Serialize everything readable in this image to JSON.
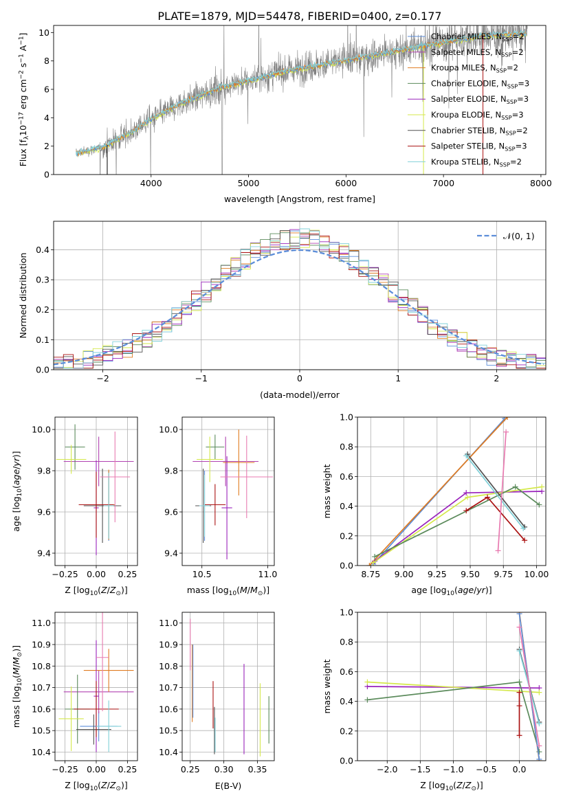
{
  "figure_title": "PLATE=1879, MJD=54478, FIBERID=0400, z=0.177",
  "colors": {
    "chabrier_miles": "#5b8dd9",
    "salpeter_miles": "#b040b0",
    "kroupa_miles": "#e07b20",
    "chabrier_elodie": "#5a8a5a",
    "salpeter_elodie": "#9922bb",
    "kroupa_elodie": "#d4e84a",
    "chabrier_stelib": "#505050",
    "salpeter_stelib": "#aa1111",
    "kroupa_stelib": "#80d0d8",
    "pink": "#e87ab0",
    "data": "#808080",
    "normal": "#5b8dd9"
  },
  "chart_data": [
    {
      "id": "spectrum",
      "type": "line",
      "xlabel": "wavelength [Angstrom, rest frame]",
      "ylabel": "Flux [f",
      "ylabel_parts": [
        "Flux [f",
        "λ",
        "10",
        "−17",
        " erg cm",
        "−2",
        " s",
        "−1",
        " A",
        "−1",
        "]"
      ],
      "xlim": [
        3000,
        8050
      ],
      "ylim": [
        0,
        10.5
      ],
      "xticks": [
        "4000",
        "5000",
        "6000",
        "7000",
        "8000"
      ],
      "yticks": [
        "0",
        "2",
        "4",
        "6",
        "8",
        "10"
      ],
      "legend": [
        {
          "label": "Chabrier MILES, N",
          "sub": "SSP",
          "tail": "=2",
          "color": "chabrier_miles"
        },
        {
          "label": "Salpeter MILES, N",
          "sub": "SSP",
          "tail": "=2",
          "color": "salpeter_miles"
        },
        {
          "label": "Kroupa MILES, N",
          "sub": "SSP",
          "tail": "=2",
          "color": "kroupa_miles"
        },
        {
          "label": "Chabrier ELODIE, N",
          "sub": "SSP",
          "tail": "=3",
          "color": "chabrier_elodie"
        },
        {
          "label": "Salpeter ELODIE, N",
          "sub": "SSP",
          "tail": "=3",
          "color": "salpeter_elodie"
        },
        {
          "label": "Kroupa ELODIE, N",
          "sub": "SSP",
          "tail": "=3",
          "color": "kroupa_elodie"
        },
        {
          "label": "Chabrier STELIB, N",
          "sub": "SSP",
          "tail": "=2",
          "color": "chabrier_stelib"
        },
        {
          "label": "Salpeter STELIB, N",
          "sub": "SSP",
          "tail": "=3",
          "color": "salpeter_stelib"
        },
        {
          "label": "Kroupa STELIB, N",
          "sub": "SSP",
          "tail": "=2",
          "color": "kroupa_stelib"
        }
      ],
      "continuum": [
        [
          3230,
          1.5
        ],
        [
          3500,
          1.9
        ],
        [
          3800,
          3.0
        ],
        [
          4000,
          3.9
        ],
        [
          4300,
          5.0
        ],
        [
          4700,
          6.1
        ],
        [
          5000,
          6.6
        ],
        [
          5400,
          7.3
        ],
        [
          5800,
          7.8
        ],
        [
          6200,
          8.3
        ],
        [
          6600,
          8.8
        ],
        [
          7000,
          9.3
        ],
        [
          7400,
          9.8
        ],
        [
          7800,
          9.9
        ]
      ],
      "model_range": [
        3230,
        7850
      ]
    },
    {
      "id": "residuals",
      "type": "bar",
      "xlabel": "(data-model)/error",
      "ylabel": "Normed distribution",
      "xlim": [
        -2.5,
        2.5
      ],
      "ylim": [
        0,
        0.495
      ],
      "xticks": [
        "−2",
        "−1",
        "0",
        "1",
        "2"
      ],
      "yticks": [
        "0.0",
        "0.1",
        "0.2",
        "0.3",
        "0.4"
      ],
      "legend": [
        {
          "label": "𝒩(0, 1)",
          "color": "normal"
        }
      ],
      "bin_width": 0.1
    },
    {
      "id": "age_vs_Z",
      "type": "scatter",
      "xlabel": "Z [log",
      "ylabel": "age  [log",
      "xlim": [
        -0.33,
        0.33
      ],
      "ylim": [
        9.34,
        10.06
      ],
      "xticks": [
        "−0.25",
        "0.00",
        "0.25"
      ],
      "yticks": [
        "9.4",
        "9.6",
        "9.8",
        "10.0"
      ],
      "points": [
        {
          "x": 0.1,
          "y": 9.63,
          "xerr": 0.08,
          "yerr": 0.17,
          "color": "chabrier_miles"
        },
        {
          "x": 0.02,
          "y": 9.845,
          "xerr": 0.28,
          "yerr": 0.12,
          "color": "salpeter_miles"
        },
        {
          "x": 0.1,
          "y": 9.635,
          "xerr": 0.05,
          "yerr": 0.17,
          "color": "kroupa_miles"
        },
        {
          "x": -0.17,
          "y": 9.915,
          "xerr": 0.08,
          "yerr": 0.11,
          "color": "chabrier_elodie"
        },
        {
          "x": 0.0,
          "y": 9.62,
          "xerr": 0.02,
          "yerr": 0.23,
          "color": "salpeter_elodie"
        },
        {
          "x": -0.2,
          "y": 9.855,
          "xerr": 0.12,
          "yerr": 0.07,
          "color": "kroupa_elodie"
        },
        {
          "x": 0.05,
          "y": 9.63,
          "xerr": 0.15,
          "yerr": 0.18,
          "color": "chabrier_stelib"
        },
        {
          "x": 0.0,
          "y": 9.635,
          "xerr": 0.14,
          "yerr": 0.16,
          "color": "salpeter_stelib"
        },
        {
          "x": 0.1,
          "y": 9.63,
          "xerr": 0.04,
          "yerr": 0.16,
          "color": "kroupa_stelib"
        },
        {
          "x": 0.15,
          "y": 9.77,
          "xerr": 0.12,
          "yerr": 0.22,
          "color": "pink"
        }
      ]
    },
    {
      "id": "age_vs_mass",
      "type": "scatter",
      "xlabel": "mass [log",
      "xlim": [
        10.35,
        11.05
      ],
      "ylim": [
        9.34,
        10.06
      ],
      "xticks": [
        "10.5",
        "11.0"
      ],
      "yticks": [
        "9.4",
        "9.6",
        "9.8",
        "10.0"
      ],
      "points": [
        {
          "x": 10.52,
          "y": 9.63,
          "xerr": 0.05,
          "yerr": 0.17,
          "color": "chabrier_miles"
        },
        {
          "x": 10.68,
          "y": 9.845,
          "xerr": 0.25,
          "yerr": 0.12,
          "color": "salpeter_miles"
        },
        {
          "x": 10.78,
          "y": 9.84,
          "xerr": 0.12,
          "yerr": 0.16,
          "color": "kroupa_miles"
        },
        {
          "x": 10.6,
          "y": 9.915,
          "xerr": 0.07,
          "yerr": 0.06,
          "color": "chabrier_elodie"
        },
        {
          "x": 10.69,
          "y": 9.62,
          "xerr": 0.04,
          "yerr": 0.25,
          "color": "salpeter_elodie"
        },
        {
          "x": 10.56,
          "y": 9.855,
          "xerr": 0.1,
          "yerr": 0.11,
          "color": "kroupa_elodie"
        },
        {
          "x": 10.51,
          "y": 9.63,
          "xerr": 0.06,
          "yerr": 0.18,
          "color": "chabrier_stelib"
        },
        {
          "x": 10.6,
          "y": 9.635,
          "xerr": 0.08,
          "yerr": 0.1,
          "color": "salpeter_stelib"
        },
        {
          "x": 10.52,
          "y": 9.63,
          "xerr": 0.04,
          "yerr": 0.15,
          "color": "kroupa_stelib"
        },
        {
          "x": 10.84,
          "y": 9.77,
          "xerr": 0.2,
          "yerr": 0.2,
          "color": "pink"
        }
      ]
    },
    {
      "id": "weight_vs_age",
      "type": "line",
      "xlabel": "age  [log",
      "ylabel": "mass weight",
      "xlim": [
        8.65,
        10.07
      ],
      "ylim": [
        0,
        1.0
      ],
      "xticks": [
        "8.75",
        "9.00",
        "9.25",
        "9.50",
        "9.75",
        "10.00"
      ],
      "yticks": [
        "0.0",
        "0.2",
        "0.4",
        "0.6",
        "0.8",
        "1.0"
      ],
      "series": [
        {
          "color": "chabrier_miles",
          "x": [
            8.77,
            9.76
          ],
          "y": [
            0.01,
            0.99
          ]
        },
        {
          "color": "kroupa_miles",
          "x": [
            8.74,
            9.78
          ],
          "y": [
            0.0,
            1.0
          ]
        },
        {
          "color": "salpeter_elodie",
          "x": [
            8.78,
            9.47,
            10.04
          ],
          "y": [
            0.03,
            0.49,
            0.5
          ]
        },
        {
          "color": "kroupa_elodie",
          "x": [
            8.77,
            9.48,
            10.04
          ],
          "y": [
            0.02,
            0.46,
            0.53
          ]
        },
        {
          "color": "chabrier_elodie",
          "x": [
            8.78,
            9.84,
            10.02
          ],
          "y": [
            0.06,
            0.53,
            0.41
          ]
        },
        {
          "color": "salpeter_stelib",
          "x": [
            9.47,
            9.63,
            9.91
          ],
          "y": [
            0.37,
            0.46,
            0.17
          ]
        },
        {
          "color": "chabrier_stelib",
          "x": [
            9.48,
            9.91
          ],
          "y": [
            0.75,
            0.26
          ]
        },
        {
          "color": "kroupa_stelib",
          "x": [
            9.47,
            9.9
          ],
          "y": [
            0.74,
            0.25
          ]
        },
        {
          "color": "pink",
          "x": [
            9.71,
            9.77
          ],
          "y": [
            0.1,
            0.9
          ]
        }
      ]
    },
    {
      "id": "mass_vs_Z",
      "type": "scatter",
      "xlabel": "Z [log",
      "ylabel": "mass [log",
      "xlim": [
        -0.33,
        0.33
      ],
      "ylim": [
        10.36,
        11.05
      ],
      "xticks": [
        "−0.25",
        "0.00",
        "0.25"
      ],
      "yticks": [
        "10.4",
        "10.5",
        "10.6",
        "10.7",
        "10.8",
        "10.9",
        "11.0"
      ],
      "points": [
        {
          "x": 0.02,
          "y": 10.52,
          "xerr": 0.15,
          "yerr": 0.07,
          "color": "chabrier_miles"
        },
        {
          "x": 0.02,
          "y": 10.68,
          "xerr": 0.28,
          "yerr": 0.1,
          "color": "salpeter_miles"
        },
        {
          "x": 0.1,
          "y": 10.78,
          "xerr": 0.2,
          "yerr": 0.1,
          "color": "kroupa_miles"
        },
        {
          "x": -0.15,
          "y": 10.6,
          "xerr": 0.1,
          "yerr": 0.16,
          "color": "chabrier_elodie"
        },
        {
          "x": 0.0,
          "y": 10.66,
          "xerr": 0.02,
          "yerr": 0.26,
          "color": "salpeter_elodie"
        },
        {
          "x": -0.2,
          "y": 10.555,
          "xerr": 0.1,
          "yerr": 0.15,
          "color": "kroupa_elodie"
        },
        {
          "x": -0.02,
          "y": 10.505,
          "xerr": 0.14,
          "yerr": 0.07,
          "color": "chabrier_stelib"
        },
        {
          "x": 0.0,
          "y": 10.6,
          "xerr": 0.18,
          "yerr": 0.13,
          "color": "salpeter_stelib"
        },
        {
          "x": 0.1,
          "y": 10.52,
          "xerr": 0.1,
          "yerr": 0.12,
          "color": "kroupa_stelib"
        },
        {
          "x": 0.05,
          "y": 10.84,
          "xerr": 0.05,
          "yerr": 0.25,
          "color": "pink"
        }
      ]
    },
    {
      "id": "mass_vs_ebv",
      "type": "scatter",
      "xlabel": "E(B-V)",
      "xlim": [
        0.238,
        0.375
      ],
      "ylim": [
        10.36,
        11.05
      ],
      "xticks": [
        "0.25",
        "0.30",
        "0.35"
      ],
      "yticks": [
        "10.4",
        "10.5",
        "10.6",
        "10.7",
        "10.8",
        "10.9",
        "11.0"
      ],
      "points": [
        {
          "x": 0.253,
          "y": 10.72,
          "yerr": 0.18,
          "color": "kroupa_miles"
        },
        {
          "x": 0.25,
          "y": 10.9,
          "yerr": 0.12,
          "color": "pink"
        },
        {
          "x": 0.254,
          "y": 10.73,
          "yerr": 0.17,
          "color": "chabrier_miles"
        },
        {
          "x": 0.284,
          "y": 10.62,
          "yerr": 0.11,
          "color": "salpeter_stelib"
        },
        {
          "x": 0.286,
          "y": 10.5,
          "yerr": 0.11,
          "color": "chabrier_stelib"
        },
        {
          "x": 0.287,
          "y": 10.48,
          "yerr": 0.08,
          "color": "kroupa_stelib"
        },
        {
          "x": 0.33,
          "y": 10.6,
          "yerr": 0.21,
          "color": "salpeter_elodie"
        },
        {
          "x": 0.354,
          "y": 10.55,
          "yerr": 0.17,
          "color": "kroupa_elodie"
        },
        {
          "x": 0.367,
          "y": 10.55,
          "yerr": 0.11,
          "color": "chabrier_elodie"
        }
      ]
    },
    {
      "id": "weight_vs_Z",
      "type": "line",
      "xlabel": "Z [log",
      "ylabel": "mass weight",
      "xlim": [
        -2.45,
        0.4
      ],
      "ylim": [
        0,
        1.0
      ],
      "xticks": [
        "−2.0",
        "−1.5",
        "−1.0",
        "−0.5",
        "0.0"
      ],
      "yticks": [
        "0.0",
        "0.2",
        "0.4",
        "0.6",
        "0.8",
        "1.0"
      ],
      "series": [
        {
          "color": "salpeter_elodie",
          "x": [
            -2.3,
            0.3
          ],
          "y": [
            0.5,
            0.49
          ]
        },
        {
          "color": "kroupa_elodie",
          "x": [
            -2.3,
            0.3
          ],
          "y": [
            0.53,
            0.46
          ]
        },
        {
          "color": "chabrier_elodie",
          "x": [
            -2.3,
            0.0,
            0.3
          ],
          "y": [
            0.41,
            0.53,
            0.06
          ]
        },
        {
          "color": "kroupa_miles",
          "x": [
            0.0,
            0.3
          ],
          "y": [
            1.0,
            0.0
          ]
        },
        {
          "color": "chabrier_miles",
          "x": [
            0.0,
            0.3
          ],
          "y": [
            0.99,
            0.01
          ]
        },
        {
          "color": "salpeter_stelib",
          "x": [
            0.0,
            0.0,
            0.0
          ],
          "y": [
            0.17,
            0.37,
            0.46
          ]
        },
        {
          "color": "chabrier_stelib",
          "x": [
            0.0,
            0.3
          ],
          "y": [
            0.75,
            0.26
          ]
        },
        {
          "color": "kroupa_stelib",
          "x": [
            0.0,
            0.3
          ],
          "y": [
            0.74,
            0.25
          ]
        },
        {
          "color": "pink",
          "x": [
            0.0,
            0.3
          ],
          "y": [
            0.9,
            0.1
          ]
        }
      ]
    }
  ]
}
